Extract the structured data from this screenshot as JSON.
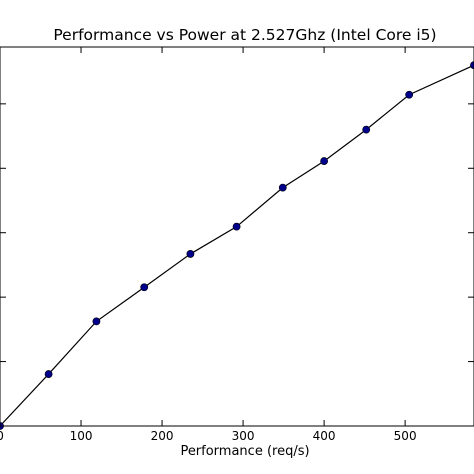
{
  "chart_data": {
    "type": "line",
    "title": "Performance vs Power at 2.527Ghz (Intel Core i5)",
    "xlabel": "Performance (req/s)",
    "ylabel": "",
    "xlim": [
      0,
      585
    ],
    "ylim": [
      0,
      100
    ],
    "x_ticks": [
      0,
      100,
      200,
      300,
      400,
      500
    ],
    "x_tick_labels": [
      "0",
      "100",
      "200",
      "300",
      "400",
      "500"
    ],
    "y_ticks": [
      0,
      17,
      34,
      51,
      68,
      85
    ],
    "grid": false,
    "legend": "none",
    "series": [
      {
        "x": [
          0,
          60,
          119,
          178,
          235,
          292,
          349,
          400,
          452,
          505,
          585
        ],
        "y": [
          0,
          13.7,
          27.6,
          36.6,
          45.4,
          52.6,
          62.9,
          69.9,
          78.2,
          87.4,
          95.2
        ],
        "line_color": "#000000",
        "marker_color": "#00008b"
      }
    ]
  }
}
